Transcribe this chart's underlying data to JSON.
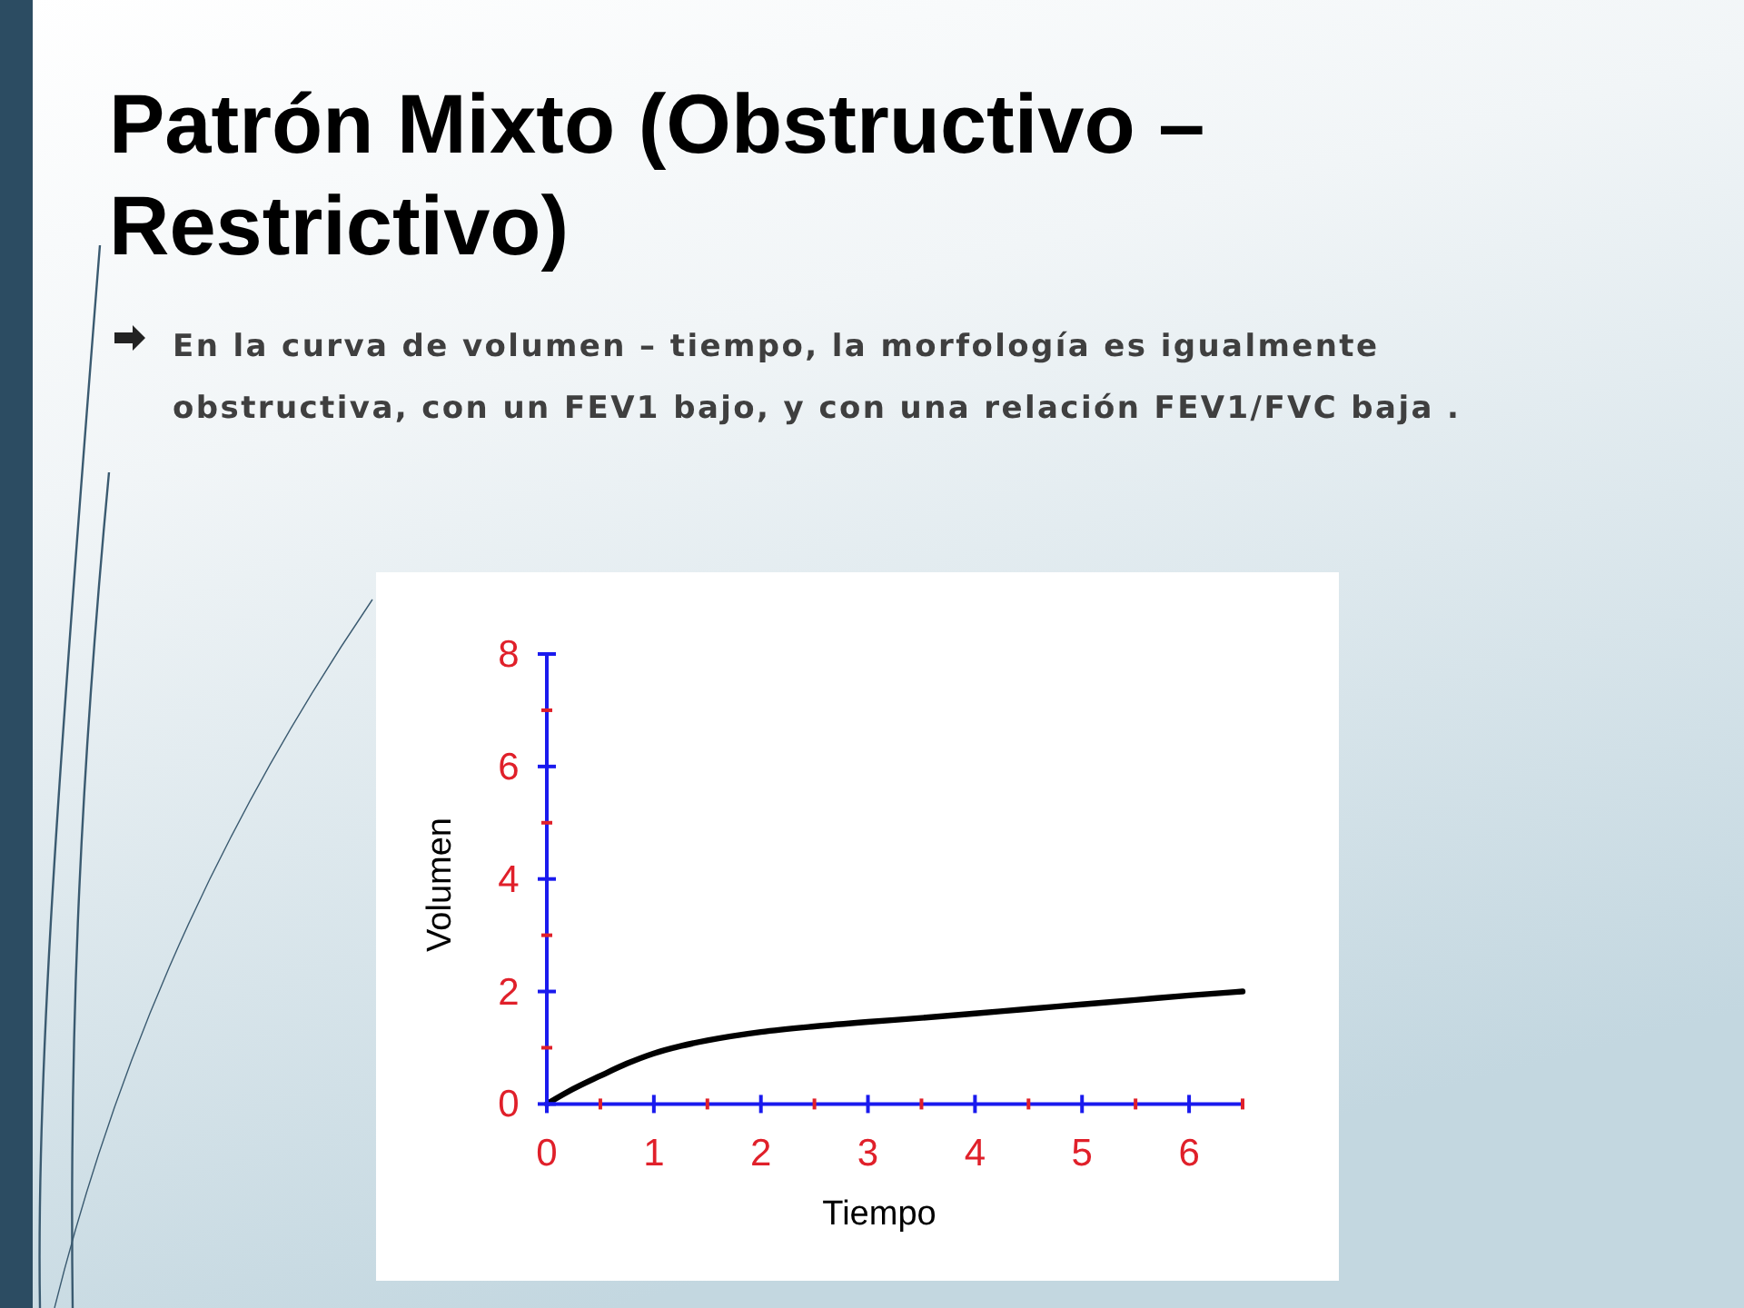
{
  "chart_data": {
    "type": "line",
    "title": "Patrón Mixto (Obstructivo – Restrictivo)",
    "subtitle": "En la curva de volumen – tiempo, la morfología es igualmente obstructiva, con un FEV1 bajo, y con una relación FEV1/FVC baja .",
    "xlabel": "Tiempo",
    "ylabel": "Volumen",
    "x": [
      0,
      0.2,
      0.5,
      0.75,
      1,
      1.25,
      1.5,
      2,
      2.5,
      3,
      3.5,
      4,
      4.5,
      5,
      5.5,
      6,
      6.5
    ],
    "series": [
      {
        "color": "#000000",
        "values": [
          0,
          0.22,
          0.5,
          0.72,
          0.9,
          1.03,
          1.13,
          1.28,
          1.38,
          1.46,
          1.53,
          1.61,
          1.69,
          1.77,
          1.85,
          1.93,
          2.0
        ]
      }
    ],
    "xlim": [
      0,
      6.5
    ],
    "ylim": [
      0,
      8
    ],
    "xticks": [
      0,
      {
        "value": 0.5,
        "label": null
      },
      1,
      {
        "value": 1.5,
        "label": null
      },
      2,
      {
        "value": 2.5,
        "label": null
      },
      3,
      {
        "value": 3.5,
        "label": null
      },
      4,
      {
        "value": 4.5,
        "label": null
      },
      5,
      {
        "value": 5.5,
        "label": null
      },
      6,
      {
        "value": 6.5,
        "label": null
      }
    ],
    "yticks": [
      0,
      {
        "value": 1,
        "label": null
      },
      2,
      {
        "value": 3,
        "label": null
      },
      4,
      {
        "value": 5,
        "label": null
      },
      6,
      {
        "value": 7,
        "label": null
      },
      8
    ]
  }
}
